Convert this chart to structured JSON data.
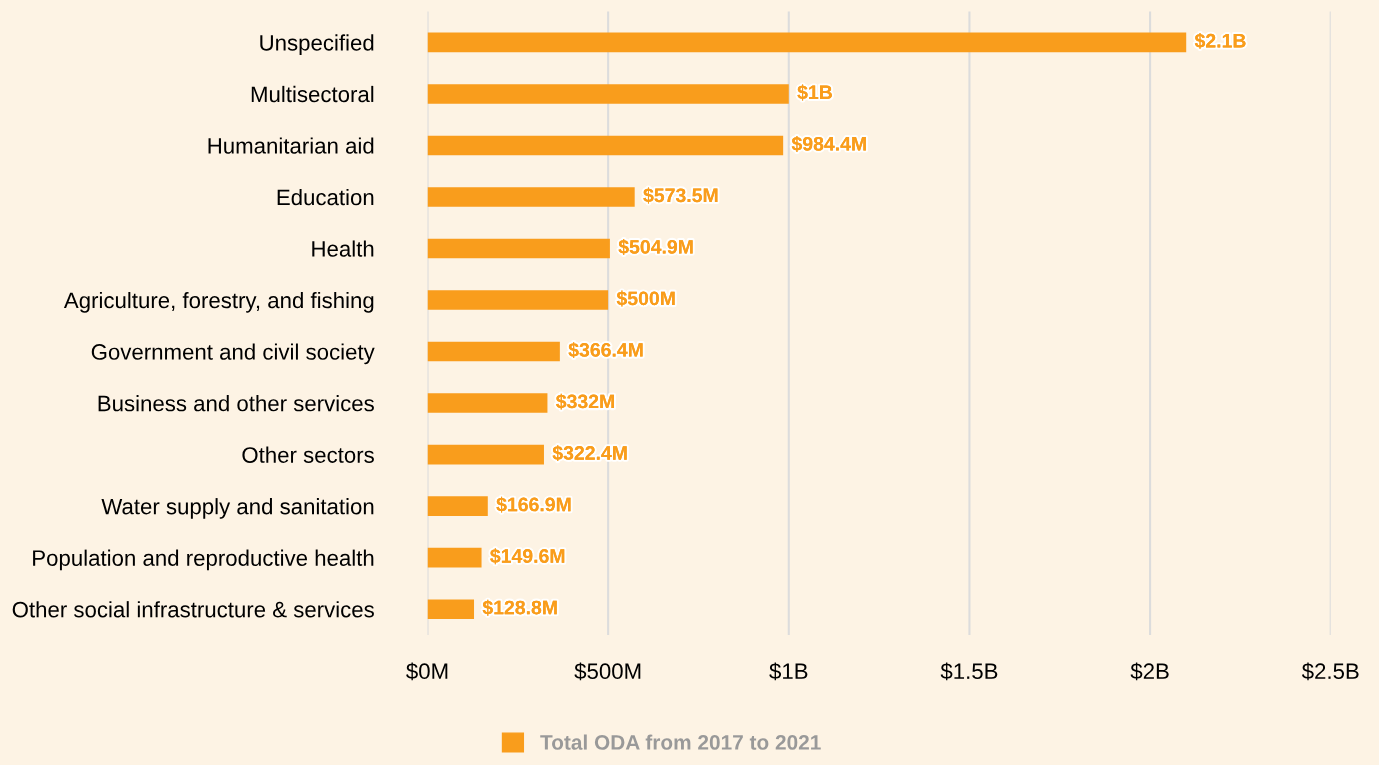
{
  "chart_data": {
    "type": "bar",
    "orientation": "horizontal",
    "categories": [
      "Unspecified",
      "Multisectoral",
      "Humanitarian aid",
      "Education",
      "Health",
      "Agriculture, forestry, and fishing",
      "Government and civil society",
      "Business and other services",
      "Other sectors",
      "Water supply and sanitation",
      "Population and reproductive health",
      "Other social infrastructure & services"
    ],
    "series": [
      {
        "name": "Total ODA from 2017 to 2021",
        "color": "#f99d1c",
        "values": [
          2100000000,
          1000000000,
          984400000,
          573500000,
          504900000,
          500000000,
          366400000,
          332000000,
          322400000,
          166900000,
          149600000,
          128800000
        ],
        "value_labels": [
          "$2.1B",
          "$1B",
          "$984.4M",
          "$573.5M",
          "$504.9M",
          "$500M",
          "$366.4M",
          "$332M",
          "$322.4M",
          "$166.9M",
          "$149.6M",
          "$128.8M"
        ]
      }
    ],
    "xlim": [
      0,
      2500000000
    ],
    "xticks": [
      {
        "value": 0,
        "label": "$0M"
      },
      {
        "value": 500000000,
        "label": "$500M"
      },
      {
        "value": 1000000000,
        "label": "$1B"
      },
      {
        "value": 1500000000,
        "label": "$1.5B"
      },
      {
        "value": 2000000000,
        "label": "$2B"
      },
      {
        "value": 2500000000,
        "label": "$2.5B"
      }
    ],
    "grid": "x",
    "legend": "bottom"
  }
}
